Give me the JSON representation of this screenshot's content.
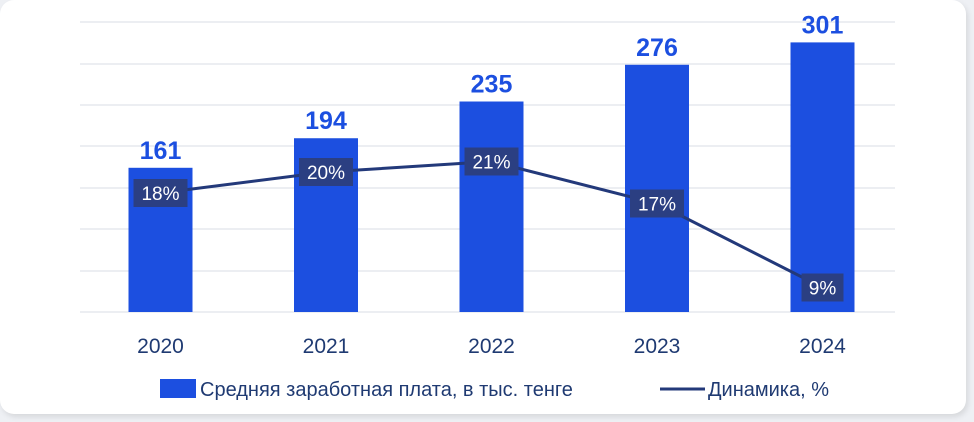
{
  "colors": {
    "bar": "#1c4fe0",
    "line": "#23397a",
    "label_box": "#2b3f82",
    "grid": "#d9dde6",
    "value_text": "#1c4fe0"
  },
  "chart_data": {
    "type": "bar",
    "categories": [
      "2020",
      "2021",
      "2022",
      "2023",
      "2024"
    ],
    "series": [
      {
        "name": "Средняя заработная плата, в тыс. тенге",
        "type": "bar",
        "values": [
          161,
          194,
          235,
          276,
          301
        ]
      },
      {
        "name": "Динамика, %",
        "type": "line",
        "values": [
          18,
          20,
          21,
          17,
          9
        ]
      }
    ],
    "value_labels": [
      "161",
      "194",
      "235",
      "276",
      "301"
    ],
    "line_labels": [
      "18%",
      "20%",
      "21%",
      "17%",
      "9%"
    ],
    "title": "",
    "xlabel": "",
    "ylabel": "",
    "legend_position": "bottom",
    "grid": true
  }
}
